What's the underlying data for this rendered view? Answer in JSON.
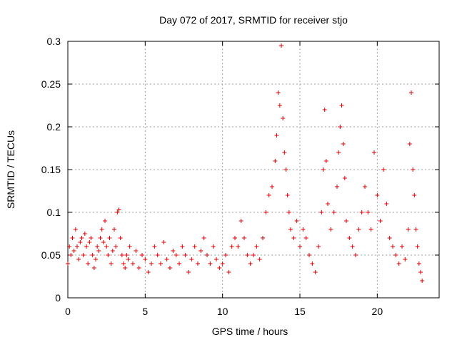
{
  "chart_data": {
    "type": "scatter",
    "title": "Day 072 of 2017, SRMTID for receiver stjo",
    "xlabel": "GPS time / hours",
    "ylabel": "SRMTID / TECUs",
    "xlim": [
      0,
      24
    ],
    "ylim": [
      0,
      0.3
    ],
    "xticks": [
      0,
      5,
      10,
      15,
      20
    ],
    "yticks": [
      0,
      0.05,
      0.1,
      0.15,
      0.2,
      0.25,
      0.3
    ],
    "xtick_labels": [
      "0",
      "5",
      "10",
      "15",
      "20"
    ],
    "ytick_labels": [
      "0",
      "0.05",
      "0.1",
      "0.15",
      "0.2",
      "0.25",
      "0.3"
    ],
    "grid": true,
    "marker": "+",
    "color": "#e00000",
    "series": [
      {
        "name": "stjo",
        "points": [
          [
            0.0,
            0.04
          ],
          [
            0.1,
            0.06
          ],
          [
            0.2,
            0.05
          ],
          [
            0.3,
            0.07
          ],
          [
            0.4,
            0.055
          ],
          [
            0.5,
            0.08
          ],
          [
            0.6,
            0.06
          ],
          [
            0.7,
            0.045
          ],
          [
            0.8,
            0.065
          ],
          [
            0.9,
            0.07
          ],
          [
            1.0,
            0.05
          ],
          [
            1.1,
            0.075
          ],
          [
            1.2,
            0.06
          ],
          [
            1.3,
            0.04
          ],
          [
            1.4,
            0.065
          ],
          [
            1.5,
            0.07
          ],
          [
            1.6,
            0.05
          ],
          [
            1.7,
            0.035
          ],
          [
            1.8,
            0.045
          ],
          [
            1.9,
            0.06
          ],
          [
            2.0,
            0.055
          ],
          [
            2.1,
            0.07
          ],
          [
            2.2,
            0.08
          ],
          [
            2.3,
            0.065
          ],
          [
            2.4,
            0.09
          ],
          [
            2.5,
            0.06
          ],
          [
            2.6,
            0.05
          ],
          [
            2.7,
            0.07
          ],
          [
            2.8,
            0.04
          ],
          [
            2.9,
            0.055
          ],
          [
            3.0,
            0.08
          ],
          [
            3.1,
            0.06
          ],
          [
            3.2,
            0.1
          ],
          [
            3.3,
            0.103
          ],
          [
            3.4,
            0.07
          ],
          [
            3.5,
            0.05
          ],
          [
            3.6,
            0.04
          ],
          [
            3.7,
            0.035
          ],
          [
            3.8,
            0.05
          ],
          [
            3.9,
            0.045
          ],
          [
            4.0,
            0.06
          ],
          [
            4.2,
            0.04
          ],
          [
            4.4,
            0.055
          ],
          [
            4.6,
            0.035
          ],
          [
            4.8,
            0.05
          ],
          [
            5.0,
            0.045
          ],
          [
            5.2,
            0.03
          ],
          [
            5.4,
            0.04
          ],
          [
            5.6,
            0.06
          ],
          [
            5.8,
            0.05
          ],
          [
            6.0,
            0.04
          ],
          [
            6.2,
            0.065
          ],
          [
            6.4,
            0.045
          ],
          [
            6.6,
            0.035
          ],
          [
            6.8,
            0.055
          ],
          [
            7.0,
            0.05
          ],
          [
            7.2,
            0.04
          ],
          [
            7.4,
            0.06
          ],
          [
            7.6,
            0.05
          ],
          [
            7.8,
            0.03
          ],
          [
            8.0,
            0.045
          ],
          [
            8.2,
            0.06
          ],
          [
            8.4,
            0.04
          ],
          [
            8.6,
            0.055
          ],
          [
            8.8,
            0.07
          ],
          [
            9.0,
            0.05
          ],
          [
            9.2,
            0.04
          ],
          [
            9.4,
            0.06
          ],
          [
            9.6,
            0.045
          ],
          [
            9.8,
            0.035
          ],
          [
            10.0,
            0.04
          ],
          [
            10.2,
            0.05
          ],
          [
            10.4,
            0.03
          ],
          [
            10.6,
            0.06
          ],
          [
            10.8,
            0.07
          ],
          [
            11.0,
            0.06
          ],
          [
            11.2,
            0.09
          ],
          [
            11.4,
            0.07
          ],
          [
            11.6,
            0.05
          ],
          [
            11.8,
            0.04
          ],
          [
            12.0,
            0.05
          ],
          [
            12.2,
            0.06
          ],
          [
            12.4,
            0.045
          ],
          [
            12.6,
            0.07
          ],
          [
            12.8,
            0.1
          ],
          [
            13.0,
            0.12
          ],
          [
            13.2,
            0.13
          ],
          [
            13.4,
            0.16
          ],
          [
            13.5,
            0.19
          ],
          [
            13.6,
            0.24
          ],
          [
            13.7,
            0.225
          ],
          [
            13.8,
            0.295
          ],
          [
            13.9,
            0.21
          ],
          [
            14.0,
            0.17
          ],
          [
            14.1,
            0.15
          ],
          [
            14.2,
            0.12
          ],
          [
            14.3,
            0.1
          ],
          [
            14.4,
            0.08
          ],
          [
            14.6,
            0.07
          ],
          [
            14.8,
            0.09
          ],
          [
            15.0,
            0.06
          ],
          [
            15.2,
            0.08
          ],
          [
            15.4,
            0.07
          ],
          [
            15.6,
            0.05
          ],
          [
            15.8,
            0.04
          ],
          [
            16.0,
            0.03
          ],
          [
            16.2,
            0.06
          ],
          [
            16.4,
            0.1
          ],
          [
            16.5,
            0.15
          ],
          [
            16.6,
            0.22
          ],
          [
            16.7,
            0.16
          ],
          [
            16.8,
            0.11
          ],
          [
            17.0,
            0.08
          ],
          [
            17.2,
            0.1
          ],
          [
            17.4,
            0.13
          ],
          [
            17.5,
            0.17
          ],
          [
            17.6,
            0.2
          ],
          [
            17.7,
            0.225
          ],
          [
            17.8,
            0.18
          ],
          [
            17.9,
            0.14
          ],
          [
            18.0,
            0.09
          ],
          [
            18.2,
            0.07
          ],
          [
            18.4,
            0.06
          ],
          [
            18.6,
            0.05
          ],
          [
            18.8,
            0.08
          ],
          [
            19.0,
            0.1
          ],
          [
            19.2,
            0.13
          ],
          [
            19.4,
            0.1
          ],
          [
            19.6,
            0.08
          ],
          [
            19.8,
            0.17
          ],
          [
            20.0,
            0.12
          ],
          [
            20.2,
            0.09
          ],
          [
            20.4,
            0.15
          ],
          [
            20.6,
            0.11
          ],
          [
            20.8,
            0.07
          ],
          [
            21.0,
            0.06
          ],
          [
            21.2,
            0.05
          ],
          [
            21.4,
            0.04
          ],
          [
            21.6,
            0.06
          ],
          [
            21.8,
            0.045
          ],
          [
            22.0,
            0.08
          ],
          [
            22.1,
            0.18
          ],
          [
            22.2,
            0.24
          ],
          [
            22.3,
            0.15
          ],
          [
            22.4,
            0.12
          ],
          [
            22.5,
            0.08
          ],
          [
            22.6,
            0.06
          ],
          [
            22.7,
            0.04
          ],
          [
            22.8,
            0.03
          ],
          [
            22.9,
            0.02
          ]
        ]
      }
    ]
  }
}
